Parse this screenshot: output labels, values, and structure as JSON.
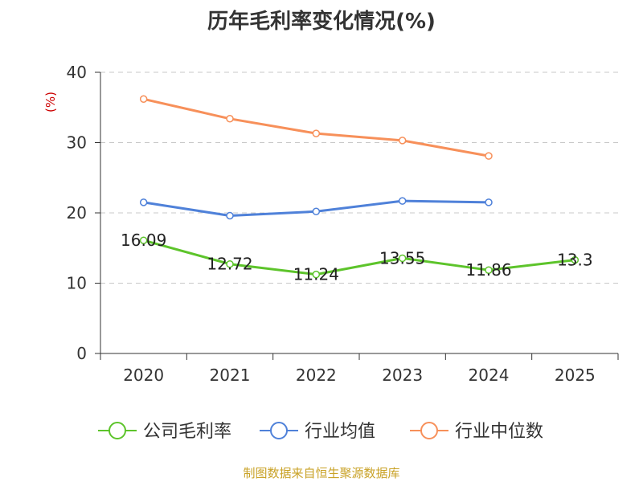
{
  "chart_data": {
    "type": "line",
    "title": "历年毛利率变化情况(%)",
    "ylabel": "(%)",
    "xlabel": "",
    "categories": [
      "2020",
      "2021",
      "2022",
      "2023",
      "2024",
      "2025"
    ],
    "ylim": [
      0,
      40
    ],
    "yticks": [
      0,
      10,
      20,
      30,
      40
    ],
    "grid": true,
    "legend_position": "bottom",
    "series": [
      {
        "name": "公司毛利率",
        "values": [
          16.09,
          12.72,
          11.24,
          13.55,
          11.86,
          13.3
        ],
        "labels": [
          "16.09",
          "12.72",
          "11.24",
          "13.55",
          "11.86",
          "13.3"
        ],
        "color": "#5dc42b"
      },
      {
        "name": "行业均值",
        "values": [
          21.5,
          19.6,
          20.2,
          21.7,
          21.5,
          null
        ],
        "color": "#4f81d9"
      },
      {
        "name": "行业中位数",
        "values": [
          36.2,
          33.4,
          31.3,
          30.3,
          28.1,
          null
        ],
        "color": "#f7905a"
      }
    ]
  },
  "footer": {
    "source": "制图数据来自恒生聚源数据库"
  }
}
